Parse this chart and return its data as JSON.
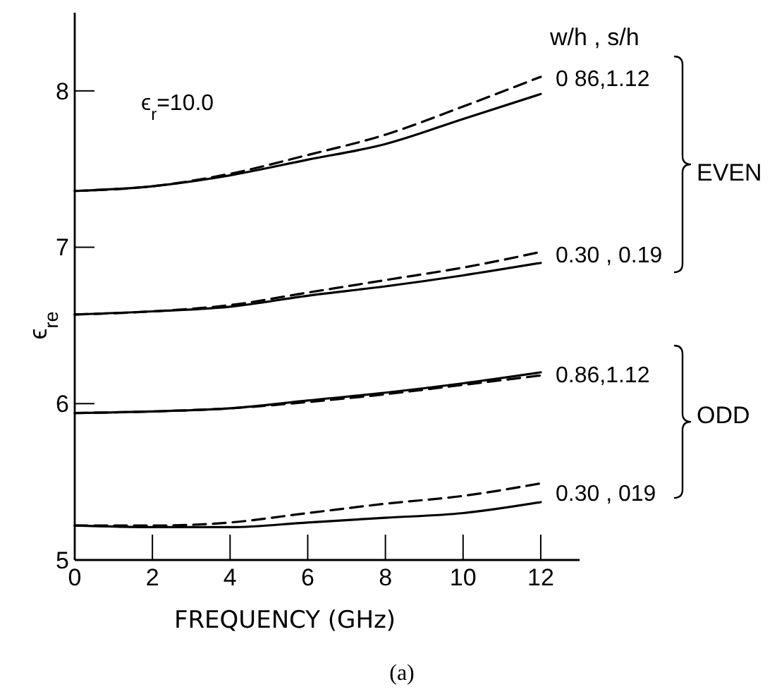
{
  "chart_data": {
    "type": "line",
    "xlabel": "FREQUENCY (GHz)",
    "ylabel": "ϵ$_{re}$",
    "xlim": [
      0,
      13
    ],
    "ylim": [
      5,
      8.5
    ],
    "xticks": [
      0,
      2,
      4,
      6,
      8,
      10,
      12
    ],
    "yticks": [
      5,
      6,
      7,
      8
    ],
    "grid": false,
    "marker": "none",
    "x": [
      0,
      2,
      4,
      6,
      8,
      10,
      12
    ],
    "series": [
      {
        "color": "#000000",
        "line_style": "solid",
        "values": [
          7.36,
          7.39,
          7.46,
          7.56,
          7.66,
          7.82,
          7.98
        ]
      },
      {
        "color": "#000000",
        "line_style": "dashed",
        "values": [
          7.36,
          7.39,
          7.47,
          7.59,
          7.72,
          7.9,
          8.09
        ]
      },
      {
        "color": "#000000",
        "line_style": "solid",
        "values": [
          6.57,
          6.59,
          6.62,
          6.69,
          6.75,
          6.82,
          6.9
        ]
      },
      {
        "color": "#000000",
        "line_style": "dashed",
        "values": [
          6.57,
          6.59,
          6.63,
          6.71,
          6.79,
          6.87,
          6.97
        ]
      },
      {
        "color": "#000000",
        "line_style": "solid",
        "values": [
          5.94,
          5.95,
          5.97,
          6.02,
          6.07,
          6.13,
          6.2
        ]
      },
      {
        "color": "#000000",
        "line_style": "dashed",
        "values": [
          5.94,
          5.95,
          5.97,
          6.01,
          6.06,
          6.12,
          6.18
        ]
      },
      {
        "color": "#000000",
        "line_style": "solid",
        "values": [
          5.22,
          5.21,
          5.21,
          5.24,
          5.27,
          5.3,
          5.37
        ]
      },
      {
        "color": "#000000",
        "line_style": "dashed",
        "values": [
          5.22,
          5.22,
          5.24,
          5.3,
          5.36,
          5.41,
          5.49
        ]
      }
    ],
    "annotations": [
      "ϵ$_{r}$=10.0",
      "w/h , s/h",
      "0 86,1.12",
      "0.30 , 0.19",
      "0.86,1.12",
      "0.30 , 019",
      "EVEN",
      "ODD",
      "(a)"
    ]
  }
}
